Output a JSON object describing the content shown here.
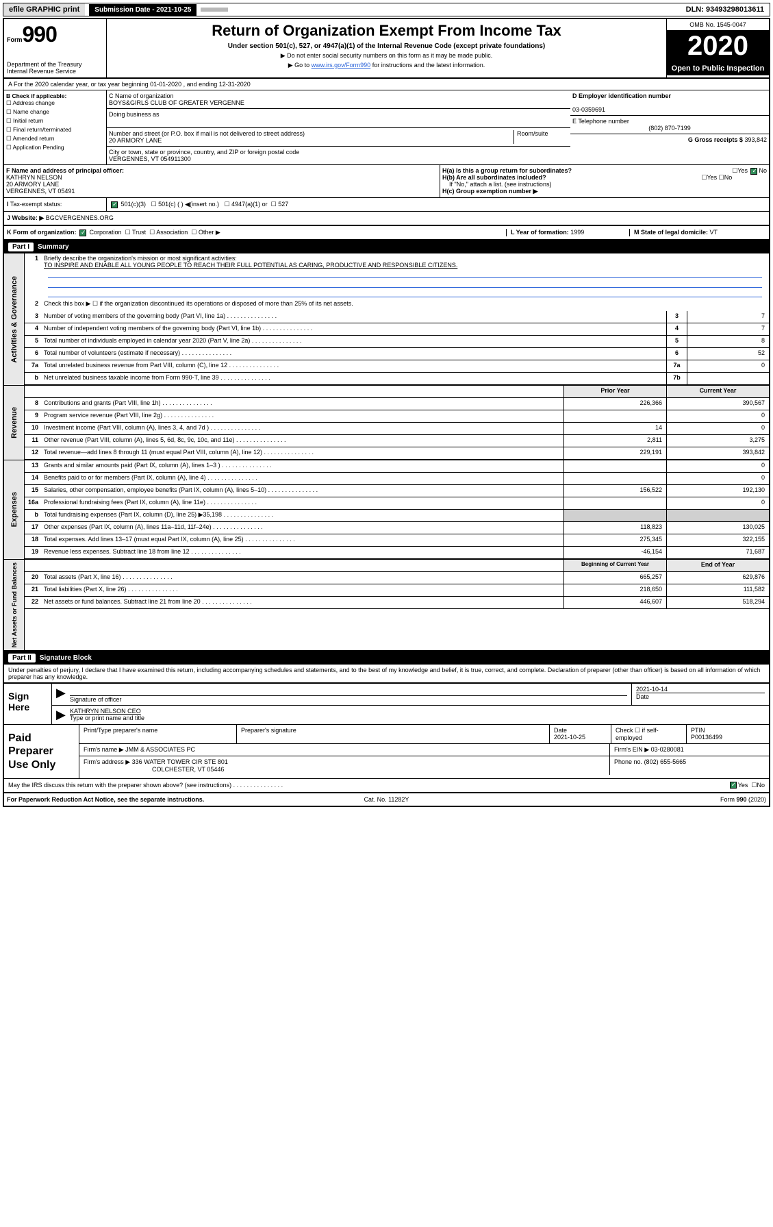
{
  "topbar": {
    "efile": "efile GRAPHIC print",
    "submission_label": "Submission Date - 2021-10-25",
    "dln": "DLN: 93493298013611"
  },
  "header": {
    "form_small": "Form",
    "form_num": "990",
    "dept": "Department of the Treasury\nInternal Revenue Service",
    "title": "Return of Organization Exempt From Income Tax",
    "sub": "Under section 501(c), 527, or 4947(a)(1) of the Internal Revenue Code (except private foundations)",
    "note1": "▶ Do not enter social security numbers on this form as it may be made public.",
    "note2_pre": "▶ Go to ",
    "note2_link": "www.irs.gov/Form990",
    "note2_post": " for instructions and the latest information.",
    "omb": "OMB No. 1545-0047",
    "year": "2020",
    "open": "Open to Public Inspection"
  },
  "sectA": "A For the 2020 calendar year, or tax year beginning 01-01-2020     , and ending 12-31-2020",
  "colB": {
    "title": "B Check if applicable:",
    "items": [
      "Address change",
      "Name change",
      "Initial return",
      "Final return/terminated",
      "Amended return",
      "Application Pending"
    ]
  },
  "colC": {
    "c_label": "C Name of organization",
    "org": "BOYS&GIRLS CLUB OF GREATER VERGENNE",
    "dba_label": "Doing business as",
    "addr_label": "Number and street (or P.O. box if mail is not delivered to street address)",
    "room_label": "Room/suite",
    "addr": "20 ARMORY LANE",
    "city_label": "City or town, state or province, country, and ZIP or foreign postal code",
    "city": "VERGENNES, VT  054911300"
  },
  "colD": {
    "d_label": "D Employer identification number",
    "ein": "03-0359691",
    "e_label": "E Telephone number",
    "phone": "(802) 870-7199",
    "g_label": "G Gross receipts $",
    "g_val": "393,842"
  },
  "rowF": {
    "f_label": "F Name and address of principal officer:",
    "f_name": "KATHRYN NELSON",
    "f_addr1": "20 ARMORY LANE",
    "f_addr2": "VERGENNES, VT  05491",
    "ha": "H(a)  Is this a group return for subordinates?",
    "ha_no": "No",
    "hb": "H(b)  Are all subordinates included?",
    "hb_note": "If \"No,\" attach a list. (see instructions)",
    "hc": "H(c)  Group exemption number ▶"
  },
  "rowI": {
    "label": "Tax-exempt status:",
    "opt1": "501(c)(3)",
    "opt2": "501(c) (   ) ◀(insert no.)",
    "opt3": "4947(a)(1) or",
    "opt4": "527"
  },
  "rowJ": {
    "label": "J   Website: ▶",
    "site": "BGCVERGENNES.ORG"
  },
  "rowK": {
    "label": "K Form of organization:",
    "corp": "Corporation",
    "trust": "Trust",
    "assoc": "Association",
    "other": "Other ▶",
    "year_label": "L Year of formation:",
    "year": "1999",
    "state_label": "M State of legal domicile:",
    "state": "VT"
  },
  "part1_hdr": "Part I     Summary",
  "gov": {
    "vlabel": "Activities & Governance",
    "l1": "Briefly describe the organization's mission or most significant activities:",
    "l1_text": "TO INSPIRE AND ENABLE ALL YOUNG PEOPLE TO REACH THEIR FULL POTENTIAL AS CARING, PRODUCTIVE AND RESPONSIBLE CITIZENS.",
    "l2": "Check this box ▶ ☐  if the organization discontinued its operations or disposed of more than 25% of its net assets.",
    "rows": [
      {
        "n": "3",
        "t": "Number of voting members of the governing body (Part VI, line 1a)",
        "b": "3",
        "v": "7"
      },
      {
        "n": "4",
        "t": "Number of independent voting members of the governing body (Part VI, line 1b)",
        "b": "4",
        "v": "7"
      },
      {
        "n": "5",
        "t": "Total number of individuals employed in calendar year 2020 (Part V, line 2a)",
        "b": "5",
        "v": "8"
      },
      {
        "n": "6",
        "t": "Total number of volunteers (estimate if necessary)",
        "b": "6",
        "v": "52"
      },
      {
        "n": "7a",
        "t": "Total unrelated business revenue from Part VIII, column (C), line 12",
        "b": "7a",
        "v": "0"
      },
      {
        "n": "b",
        "t": "Net unrelated business taxable income from Form 990-T, line 39",
        "b": "7b",
        "v": ""
      }
    ]
  },
  "rev": {
    "vlabel": "Revenue",
    "hdrA": "Prior Year",
    "hdrB": "Current Year",
    "rows": [
      {
        "n": "8",
        "t": "Contributions and grants (Part VIII, line 1h)",
        "a": "226,366",
        "b": "390,567"
      },
      {
        "n": "9",
        "t": "Program service revenue (Part VIII, line 2g)",
        "a": "",
        "b": "0"
      },
      {
        "n": "10",
        "t": "Investment income (Part VIII, column (A), lines 3, 4, and 7d )",
        "a": "14",
        "b": "0"
      },
      {
        "n": "11",
        "t": "Other revenue (Part VIII, column (A), lines 5, 6d, 8c, 9c, 10c, and 11e)",
        "a": "2,811",
        "b": "3,275"
      },
      {
        "n": "12",
        "t": "Total revenue—add lines 8 through 11 (must equal Part VIII, column (A), line 12)",
        "a": "229,191",
        "b": "393,842"
      }
    ]
  },
  "exp": {
    "vlabel": "Expenses",
    "rows": [
      {
        "n": "13",
        "t": "Grants and similar amounts paid (Part IX, column (A), lines 1–3 )",
        "a": "",
        "b": "0"
      },
      {
        "n": "14",
        "t": "Benefits paid to or for members (Part IX, column (A), line 4)",
        "a": "",
        "b": "0"
      },
      {
        "n": "15",
        "t": "Salaries, other compensation, employee benefits (Part IX, column (A), lines 5–10)",
        "a": "156,522",
        "b": "192,130"
      },
      {
        "n": "16a",
        "t": "Professional fundraising fees (Part IX, column (A), line 11e)",
        "a": "",
        "b": "0"
      },
      {
        "n": "b",
        "t": "Total fundraising expenses (Part IX, column (D), line 25) ▶35,198",
        "a": "shade",
        "b": "shade"
      },
      {
        "n": "17",
        "t": "Other expenses (Part IX, column (A), lines 11a–11d, 11f–24e)",
        "a": "118,823",
        "b": "130,025"
      },
      {
        "n": "18",
        "t": "Total expenses. Add lines 13–17 (must equal Part IX, column (A), line 25)",
        "a": "275,345",
        "b": "322,155"
      },
      {
        "n": "19",
        "t": "Revenue less expenses. Subtract line 18 from line 12",
        "a": "-46,154",
        "b": "71,687"
      }
    ]
  },
  "net": {
    "vlabel": "Net Assets or Fund Balances",
    "hdrA": "Beginning of Current Year",
    "hdrB": "End of Year",
    "rows": [
      {
        "n": "20",
        "t": "Total assets (Part X, line 16)",
        "a": "665,257",
        "b": "629,876"
      },
      {
        "n": "21",
        "t": "Total liabilities (Part X, line 26)",
        "a": "218,650",
        "b": "111,582"
      },
      {
        "n": "22",
        "t": "Net assets or fund balances. Subtract line 21 from line 20",
        "a": "446,607",
        "b": "518,294"
      }
    ]
  },
  "part2_hdr": "Part II     Signature Block",
  "perjury": "Under penalties of perjury, I declare that I have examined this return, including accompanying schedules and statements, and to the best of my knowledge and belief, it is true, correct, and complete. Declaration of preparer (other than officer) is based on all information of which preparer has any knowledge.",
  "sign": {
    "label": "Sign Here",
    "sig": "Signature of officer",
    "date": "2021-10-14",
    "date_label": "Date",
    "name": "KATHRYN NELSON CEO",
    "name_label": "Type or print name and title"
  },
  "paid": {
    "label": "Paid Preparer Use Only",
    "r1": {
      "a": "Print/Type preparer's name",
      "b": "Preparer's signature",
      "c": "Date",
      "c_val": "2021-10-25",
      "d": "Check ☐ if self-employed",
      "e": "PTIN",
      "e_val": "P00136499"
    },
    "r2": {
      "a": "Firm's name      ▶",
      "a_val": "JMM & ASSOCIATES PC",
      "b": "Firm's EIN ▶",
      "b_val": "03-0280081"
    },
    "r3": {
      "a": "Firm's address ▶",
      "a_val": "336 WATER TOWER CIR STE 801",
      "a_val2": "COLCHESTER, VT  05446",
      "b": "Phone no.",
      "b_val": "(802) 655-5665"
    }
  },
  "discuss": "May the IRS discuss this return with the preparer shown above? (see instructions)",
  "discuss_yes": "Yes",
  "discuss_no": "No",
  "footer": {
    "left": "For Paperwork Reduction Act Notice, see the separate instructions.",
    "mid": "Cat. No. 11282Y",
    "right": "Form 990 (2020)"
  }
}
